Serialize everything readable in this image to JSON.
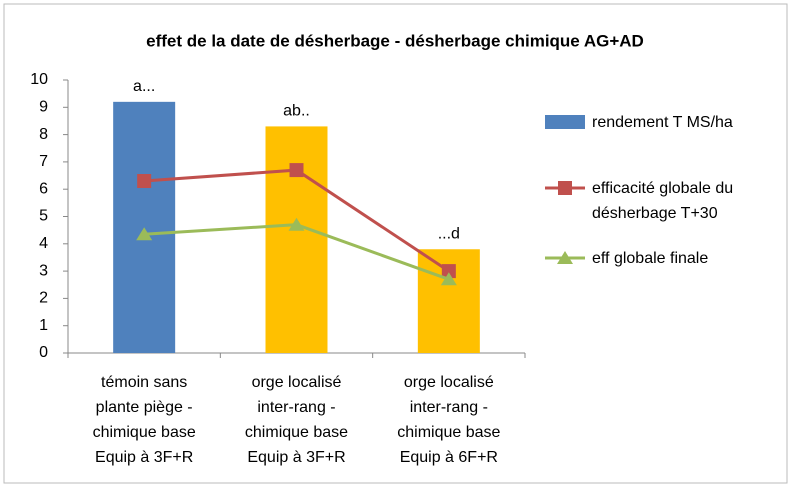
{
  "chart_data": {
    "type": "bar",
    "title": "effet de la date de désherbage - désherbage chimique AG+AD",
    "categories": [
      [
        "témoin sans",
        "plante piège -",
        "chimique base",
        "Equip à 3F+R"
      ],
      [
        "orge localisé",
        "inter-rang -",
        "chimique base",
        "Equip à 3F+R"
      ],
      [
        "orge localisé",
        "inter-rang -",
        "chimique base",
        "Equip à 6F+R"
      ]
    ],
    "series": [
      {
        "name": "rendement T MS/ha",
        "type": "bar",
        "color": "#4f81bd",
        "colors": [
          "#4f81bd",
          "#ffc000",
          "#ffc000"
        ],
        "values": [
          9.2,
          8.3,
          3.8
        ]
      },
      {
        "name": "efficacité globale du désherbage T+30",
        "type": "line",
        "marker": "square",
        "color": "#c0504d",
        "values": [
          6.3,
          6.7,
          3.0
        ]
      },
      {
        "name": "eff globale finale",
        "type": "line",
        "marker": "triangle",
        "color": "#9bbb59",
        "values": [
          4.35,
          4.7,
          2.7
        ]
      }
    ],
    "annotations": [
      "a...",
      "ab..",
      "...d"
    ],
    "ylim": [
      0,
      10
    ],
    "yticks": [
      0,
      1,
      2,
      3,
      4,
      5,
      6,
      7,
      8,
      9,
      10
    ],
    "grid": false,
    "legend": "right"
  }
}
